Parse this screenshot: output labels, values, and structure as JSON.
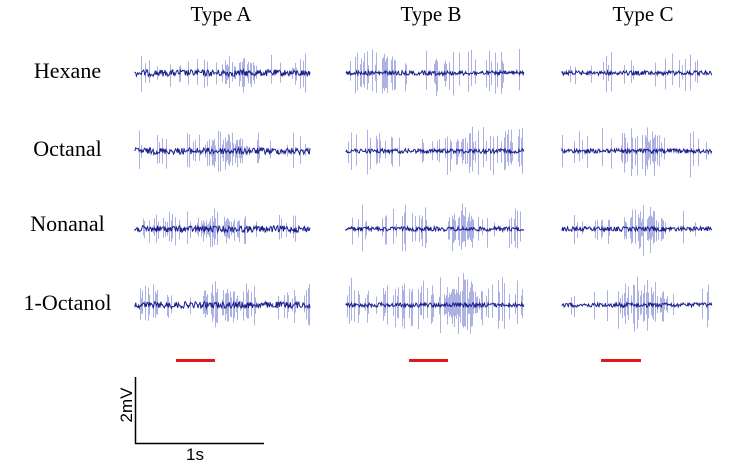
{
  "columns": [
    "Type A",
    "Type B",
    "Type C"
  ],
  "rows": [
    "Hexane",
    "Octanal",
    "Nonanal",
    "1-Octanol"
  ],
  "scale_bar": {
    "voltage_label": "2mV",
    "time_label": "1s"
  },
  "colors": {
    "trace": "#1a1f8c",
    "spike": "#8a90d8",
    "stimulus": "#e0191a",
    "scale": "#000000"
  },
  "traces": [
    [
      {
        "spike_density": 0.55,
        "burst": [
          0.5,
          0.7
        ],
        "noise": 3,
        "spike_amp": 22
      },
      {
        "spike_density": 0.5,
        "burst": [
          0.4,
          0.65
        ],
        "noise": 3,
        "spike_amp": 22
      },
      {
        "spike_density": 0.55,
        "burst": [
          0.35,
          0.6
        ],
        "noise": 3,
        "spike_amp": 20
      },
      {
        "spike_density": 0.5,
        "burst": [
          0.38,
          0.6
        ],
        "noise": 3,
        "spike_amp": 24
      }
    ],
    [
      {
        "spike_density": 0.75,
        "burst": null,
        "noise": 2,
        "spike_amp": 26
      },
      {
        "spike_density": 0.7,
        "burst": null,
        "noise": 2,
        "spike_amp": 28
      },
      {
        "spike_density": 0.65,
        "burst": [
          0.6,
          0.72
        ],
        "noise": 2,
        "spike_amp": 26
      },
      {
        "spike_density": 0.75,
        "burst": [
          0.55,
          0.75
        ],
        "noise": 2,
        "spike_amp": 30
      }
    ],
    [
      {
        "spike_density": 0.3,
        "burst": null,
        "noise": 2,
        "spike_amp": 22
      },
      {
        "spike_density": 0.35,
        "burst": [
          0.38,
          0.65
        ],
        "noise": 2,
        "spike_amp": 30
      },
      {
        "spike_density": 0.35,
        "burst": [
          0.4,
          0.7
        ],
        "noise": 2,
        "spike_amp": 22
      },
      {
        "spike_density": 0.3,
        "burst": [
          0.38,
          0.7
        ],
        "noise": 2,
        "spike_amp": 28
      }
    ]
  ]
}
